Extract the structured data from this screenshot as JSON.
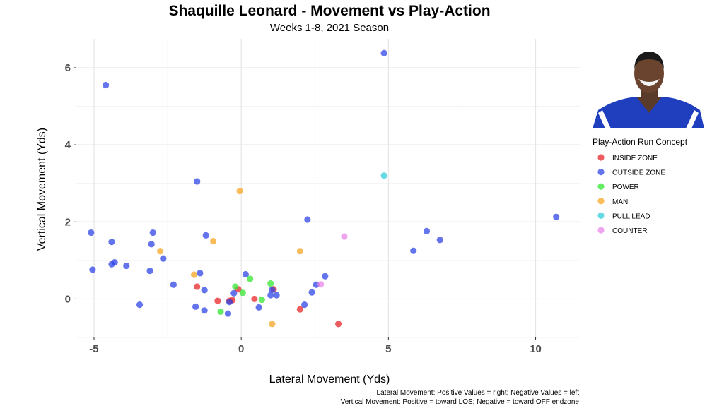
{
  "chart_data": {
    "type": "scatter",
    "title": "Shaquille Leonard - Movement vs Play-Action",
    "subtitle": "Weeks 1-8, 2021 Season",
    "xlabel": "Lateral Movement (Yds)",
    "ylabel": "Vertical Movement (Yds)",
    "xlim": [
      -5.6,
      11.5
    ],
    "ylim": [
      -1.0,
      6.75
    ],
    "x_ticks": [
      -5,
      0,
      5,
      10
    ],
    "x_tick_labels": [
      "-5",
      "0",
      "5",
      "10"
    ],
    "y_ticks": [
      0,
      2,
      4,
      6
    ],
    "y_tick_labels": [
      "0",
      "2",
      "4",
      "6"
    ],
    "grid": true,
    "legend_position": "right",
    "legend_title": "Play-Action Run Concept",
    "caption": [
      "Lateral Movement: Positive Values = right; Negative Values = left",
      "Vertical Movement: Positive = toward LOS; Negative = toward OFF endzone"
    ],
    "image_description": "Player headshot photo",
    "series": [
      {
        "name": "INSIDE ZONE",
        "color": "#e8262a",
        "points": [
          {
            "x": -0.1,
            "y": 0.25
          },
          {
            "x": -0.4,
            "y": -0.05
          },
          {
            "x": -0.8,
            "y": -0.05
          },
          {
            "x": 0.45,
            "y": 0.0
          },
          {
            "x": -1.5,
            "y": 0.32
          },
          {
            "x": 2.0,
            "y": -0.27
          },
          {
            "x": 3.3,
            "y": -0.65
          },
          {
            "x": 1.1,
            "y": 0.25
          },
          {
            "x": -0.3,
            "y": -0.03
          }
        ]
      },
      {
        "name": "OUTSIDE ZONE",
        "color": "#2f46e6",
        "points": [
          {
            "x": 4.85,
            "y": 6.38
          },
          {
            "x": -4.6,
            "y": 5.55
          },
          {
            "x": -1.5,
            "y": 3.05
          },
          {
            "x": 10.7,
            "y": 2.13
          },
          {
            "x": 2.25,
            "y": 2.06
          },
          {
            "x": -5.1,
            "y": 1.72
          },
          {
            "x": -3.0,
            "y": 1.72
          },
          {
            "x": -1.2,
            "y": 1.65
          },
          {
            "x": 6.3,
            "y": 1.76
          },
          {
            "x": 6.75,
            "y": 1.53
          },
          {
            "x": -4.4,
            "y": 1.48
          },
          {
            "x": -3.05,
            "y": 1.42
          },
          {
            "x": 5.85,
            "y": 1.25
          },
          {
            "x": -2.65,
            "y": 1.05
          },
          {
            "x": -4.3,
            "y": 0.95
          },
          {
            "x": -4.4,
            "y": 0.9
          },
          {
            "x": -3.9,
            "y": 0.86
          },
          {
            "x": -5.05,
            "y": 0.76
          },
          {
            "x": -3.1,
            "y": 0.73
          },
          {
            "x": -1.4,
            "y": 0.67
          },
          {
            "x": 0.15,
            "y": 0.64
          },
          {
            "x": 2.85,
            "y": 0.59
          },
          {
            "x": -2.3,
            "y": 0.37
          },
          {
            "x": 2.55,
            "y": 0.37
          },
          {
            "x": -1.25,
            "y": 0.23
          },
          {
            "x": 1.05,
            "y": 0.24
          },
          {
            "x": 2.4,
            "y": 0.17
          },
          {
            "x": -0.25,
            "y": 0.15
          },
          {
            "x": 1.0,
            "y": 0.1
          },
          {
            "x": 1.2,
            "y": 0.1
          },
          {
            "x": -0.4,
            "y": -0.08
          },
          {
            "x": -3.45,
            "y": -0.15
          },
          {
            "x": 2.15,
            "y": -0.15
          },
          {
            "x": -1.55,
            "y": -0.2
          },
          {
            "x": 0.6,
            "y": -0.22
          },
          {
            "x": -1.25,
            "y": -0.3
          },
          {
            "x": -0.45,
            "y": -0.38
          }
        ]
      },
      {
        "name": "POWER",
        "color": "#33e633",
        "points": [
          {
            "x": 0.3,
            "y": 0.52
          },
          {
            "x": 1.0,
            "y": 0.4
          },
          {
            "x": -0.2,
            "y": 0.32
          },
          {
            "x": 0.05,
            "y": 0.16
          },
          {
            "x": 0.7,
            "y": -0.02
          },
          {
            "x": -0.7,
            "y": -0.33
          }
        ]
      },
      {
        "name": "MAN",
        "color": "#f5a623",
        "points": [
          {
            "x": -0.05,
            "y": 2.8
          },
          {
            "x": -0.95,
            "y": 1.5
          },
          {
            "x": -2.75,
            "y": 1.24
          },
          {
            "x": 2.0,
            "y": 1.24
          },
          {
            "x": -1.6,
            "y": 0.63
          },
          {
            "x": 1.05,
            "y": -0.65
          }
        ]
      },
      {
        "name": "PULL LEAD",
        "color": "#33ccd9",
        "points": [
          {
            "x": 4.85,
            "y": 3.2
          }
        ]
      },
      {
        "name": "COUNTER",
        "color": "#e985ea",
        "points": [
          {
            "x": 3.5,
            "y": 1.62
          },
          {
            "x": 2.7,
            "y": 0.38
          }
        ]
      }
    ]
  }
}
